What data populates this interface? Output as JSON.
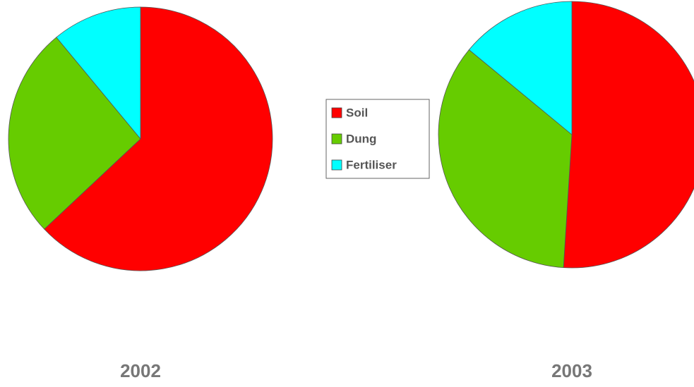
{
  "chart_data": [
    {
      "type": "pie",
      "title": "2002",
      "categories": [
        "Soil",
        "Dung",
        "Fertiliser"
      ],
      "values": [
        63,
        26,
        11
      ],
      "colors": [
        "#ff0000",
        "#66cc00",
        "#00ffff"
      ]
    },
    {
      "type": "pie",
      "title": "2003",
      "categories": [
        "Soil",
        "Dung",
        "Fertiliser"
      ],
      "values": [
        51,
        35,
        14
      ],
      "colors": [
        "#ff0000",
        "#66cc00",
        "#00ffff"
      ]
    }
  ]
}
